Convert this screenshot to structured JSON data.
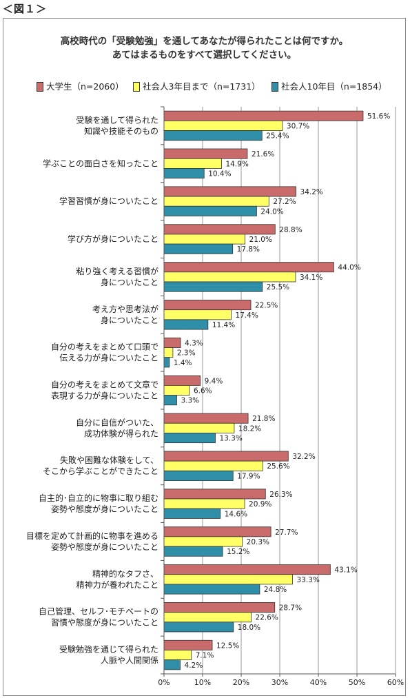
{
  "figure_label": "＜図１＞",
  "chart_data": {
    "type": "bar",
    "orientation": "horizontal",
    "title_lines": [
      "高校時代の「受験勉強」を通してあなたが得られたことは何ですか。",
      "あてはまるものをすべて選択してください。"
    ],
    "legend_placement": "top",
    "series": [
      {
        "name": "大学生（n=2060）",
        "color": "#c96b6b",
        "values": [
          51.6,
          21.6,
          34.2,
          28.8,
          44.0,
          22.5,
          4.3,
          9.4,
          21.8,
          32.2,
          26.3,
          27.7,
          43.1,
          28.7,
          12.5
        ]
      },
      {
        "name": "社会人3年目まで（n=1731）",
        "color": "#ffff66",
        "values": [
          30.7,
          14.9,
          27.2,
          21.0,
          34.1,
          17.4,
          2.3,
          6.6,
          18.2,
          25.6,
          20.9,
          20.3,
          33.3,
          22.6,
          7.1
        ]
      },
      {
        "name": "社会人10年目（n=1854）",
        "color": "#2f8fa8",
        "values": [
          25.4,
          10.4,
          24.0,
          17.8,
          25.5,
          11.4,
          1.4,
          3.3,
          13.3,
          17.9,
          14.6,
          15.2,
          24.8,
          18.0,
          4.2
        ]
      }
    ],
    "categories": [
      [
        "受験を通して得られた",
        "知識や技能そのもの"
      ],
      [
        "学ぶことの面白さを知ったこと"
      ],
      [
        "学習習慣が身についたこと"
      ],
      [
        "学び方が身についたこと"
      ],
      [
        "粘り強く考える習慣が",
        "身についたこと"
      ],
      [
        "考え方や思考法が",
        "身についたこと"
      ],
      [
        "自分の考えをまとめて口頭で",
        "伝える力が身についたこと"
      ],
      [
        "自分の考えをまとめて文章で",
        "表現する力が身についたこと"
      ],
      [
        "自分に自信がついた、",
        "成功体験が得られた"
      ],
      [
        "失敗や困難な体験をして、",
        "そこから学ぶことができたこと"
      ],
      [
        "自主的･自立的に物事に取り組む",
        "姿勢や態度が身についたこと"
      ],
      [
        "目標を定めて計画的に物事を進める",
        "姿勢や態度が身についたこと"
      ],
      [
        "精神的なタフさ、",
        "精神力が養われたこと"
      ],
      [
        "自己管理、セルフ･モチベートの",
        "習慣や態度が身についたこと"
      ],
      [
        "受験勉強を通じて得られた",
        "人脈や人間関係"
      ]
    ],
    "xlim": [
      0,
      60
    ],
    "xticks": [
      "0%",
      "10%",
      "20%",
      "30%",
      "40%",
      "50%",
      "60%"
    ],
    "value_suffix": "%",
    "grid": true
  }
}
